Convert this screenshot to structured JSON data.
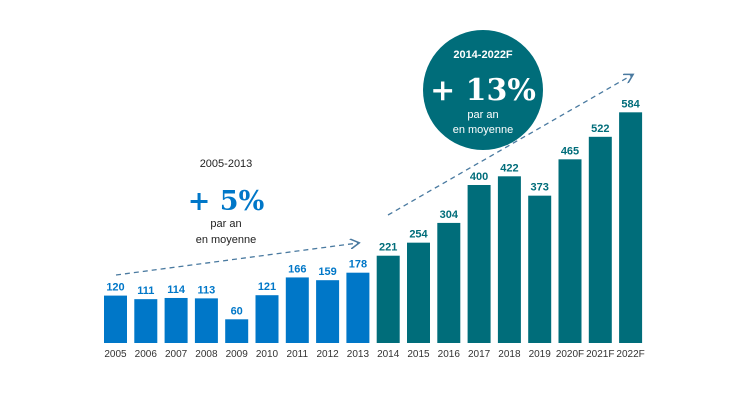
{
  "chart_data": {
    "type": "bar",
    "categories": [
      "2005",
      "2006",
      "2007",
      "2008",
      "2009",
      "2010",
      "2011",
      "2012",
      "2013",
      "2014",
      "2015",
      "2016",
      "2017",
      "2018",
      "2019",
      "2020F",
      "2021F",
      "2022F"
    ],
    "values": [
      120,
      111,
      114,
      113,
      60,
      121,
      166,
      159,
      178,
      221,
      254,
      304,
      400,
      422,
      373,
      465,
      522,
      584
    ],
    "colors": {
      "period_1": "#0077c8",
      "period_2": "#006d7a",
      "arrow": "#4a7aa0"
    },
    "title": "",
    "xlabel": "",
    "ylabel": "",
    "ylim": [
      0,
      600
    ],
    "grid": false,
    "annotations": [
      {
        "period": "2005-2013",
        "growth": "+ 5%",
        "line1": "par an",
        "line2": "en moyenne"
      },
      {
        "period": "2014-2022F",
        "growth": "+ 13%",
        "line1": "par an",
        "line2": "en moyenne"
      }
    ]
  }
}
